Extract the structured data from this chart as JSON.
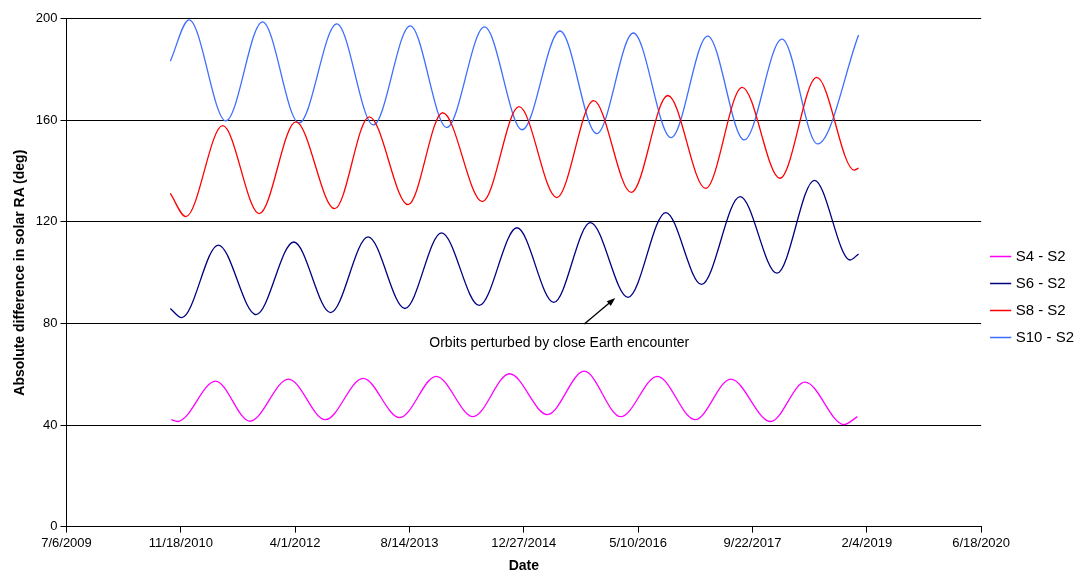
{
  "chart_data": {
    "type": "line",
    "xlabel": "Date",
    "ylabel": "Absolute difference in solar RA (deg)",
    "xlim": [
      "2009-07-06",
      "2020-06-18"
    ],
    "xticks": [
      {
        "value": "2009-07-06",
        "label": "7/6/2009"
      },
      {
        "value": "2010-11-18",
        "label": "11/18/2010"
      },
      {
        "value": "2012-04-01",
        "label": "4/1/2012"
      },
      {
        "value": "2013-08-14",
        "label": "8/14/2013"
      },
      {
        "value": "2014-12-27",
        "label": "12/27/2014"
      },
      {
        "value": "2016-05-10",
        "label": "5/10/2016"
      },
      {
        "value": "2017-09-22",
        "label": "9/22/2017"
      },
      {
        "value": "2019-02-04",
        "label": "2/4/2019"
      },
      {
        "value": "2020-06-18",
        "label": "6/18/2020"
      }
    ],
    "ylim": [
      0,
      200
    ],
    "yticks": [
      0,
      40,
      80,
      120,
      160,
      200
    ],
    "grid": "y",
    "legend": "right",
    "marker": "none",
    "line_style": "solid",
    "annotations": [
      "Orbits perturbed by close Earth encounter"
    ],
    "series": [
      {
        "name": "S4 - S2",
        "color": "#ff00ff",
        "x": [
          "2010-10-07",
          "2010-11-04",
          "2011-04-19",
          "2011-09-16",
          "2012-03-03",
          "2012-08-11",
          "2013-01-23",
          "2013-07-02",
          "2013-12-09",
          "2014-05-19",
          "2014-10-26",
          "2015-04-09",
          "2015-09-17",
          "2016-02-24",
          "2016-08-02",
          "2017-01-14",
          "2017-06-19",
          "2017-12-10",
          "2018-05-10",
          "2018-10-27",
          "2018-12-25"
        ],
        "values": [
          42.1,
          41.4,
          57.3,
          41.5,
          58.1,
          42.1,
          58.4,
          42.9,
          59.2,
          43.3,
          60.2,
          44.1,
          61.2,
          43.3,
          59.2,
          42.1,
          58.1,
          41.4,
          56.9,
          40.2,
          43.3
        ]
      },
      {
        "name": "S6 - S2",
        "color": "#000080",
        "x": [
          "2010-10-03",
          "2010-11-22",
          "2011-05-01",
          "2011-10-13",
          "2012-03-26",
          "2012-09-03",
          "2013-02-14",
          "2013-07-25",
          "2014-01-01",
          "2014-06-15",
          "2014-11-27",
          "2015-05-07",
          "2015-10-14",
          "2016-03-27",
          "2016-09-08",
          "2017-02-11",
          "2017-07-30",
          "2018-01-07",
          "2018-06-20",
          "2018-11-23",
          "2018-12-30"
        ],
        "values": [
          85.9,
          82.3,
          110.9,
          83.5,
          112.1,
          84.3,
          114.1,
          85.9,
          115.7,
          87.1,
          117.7,
          88.3,
          119.7,
          90.3,
          123.7,
          95.4,
          130.0,
          99.8,
          136.4,
          105.0,
          107.4
        ]
      },
      {
        "name": "S8 - S2",
        "color": "#ff0000",
        "x": [
          "2010-10-03",
          "2010-12-10",
          "2011-05-20",
          "2011-10-27",
          "2012-04-04",
          "2012-09-21",
          "2013-02-19",
          "2013-08-08",
          "2014-01-06",
          "2014-06-29",
          "2014-12-06",
          "2015-05-20",
          "2015-10-28",
          "2016-04-10",
          "2016-09-17",
          "2017-03-01",
          "2017-08-08",
          "2018-01-20",
          "2018-06-30",
          "2018-12-11",
          "2018-12-30"
        ],
        "values": [
          131.2,
          122.1,
          157.9,
          123.3,
          159.4,
          125.2,
          161.4,
          126.8,
          163.0,
          128.0,
          165.4,
          129.6,
          167.8,
          131.6,
          169.8,
          133.2,
          173.0,
          137.2,
          176.9,
          140.4,
          141.2
        ]
      },
      {
        "name": "S10 - S2",
        "color": "#3d6eff",
        "x": [
          "2010-10-03",
          "2010-12-24",
          "2011-06-03",
          "2011-11-10",
          "2012-04-18",
          "2012-09-30",
          "2013-03-09",
          "2013-08-17",
          "2014-01-24",
          "2014-07-08",
          "2014-12-20",
          "2015-06-03",
          "2015-11-11",
          "2016-04-19",
          "2016-10-01",
          "2017-03-10",
          "2017-08-17",
          "2018-01-29",
          "2018-07-04",
          "2018-12-30"
        ],
        "values": [
          183.3,
          199.6,
          159.8,
          198.8,
          159.0,
          198.0,
          158.2,
          197.2,
          157.2,
          196.8,
          156.3,
          195.2,
          154.8,
          194.4,
          153.2,
          193.2,
          152.3,
          192.0,
          150.7,
          193.6
        ]
      }
    ]
  }
}
